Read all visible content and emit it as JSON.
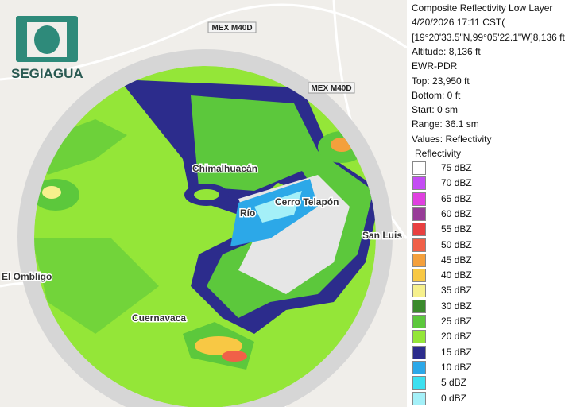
{
  "logo": "SEGIAGUA",
  "map_labels": {
    "road_1": "MEX M40D",
    "road_2": "MEX M40D",
    "city_1": "Chimalhuacán",
    "city_2": "Cerro Telapón",
    "city_3": "San Luis",
    "city_4": "Cuernavaca",
    "city_5": "El Ombligo",
    "city_6": "Río"
  },
  "info": [
    "Composite Reflectivity Low Layer",
    "4/20/2026 17:11 CST(",
    "[19°20'33.5\"N,99°05'22.1\"W]8,136 ft",
    "Altitude: 8,136 ft",
    "EWR-PDR",
    "Top: 23,950 ft",
    "Bottom: 0 ft",
    "Start: 0 sm",
    "Range: 36.1 sm",
    "Values: Reflectivity"
  ],
  "legend": {
    "title": "Reflectivity",
    "items": [
      {
        "label": "75 dBZ",
        "color": "#ffffff"
      },
      {
        "label": "70 dBZ",
        "color": "#c44cf4"
      },
      {
        "label": "65 dBZ",
        "color": "#e040e0"
      },
      {
        "label": "60 dBZ",
        "color": "#983c98"
      },
      {
        "label": "55 dBZ",
        "color": "#e84040"
      },
      {
        "label": "50 dBZ",
        "color": "#f06048"
      },
      {
        "label": "45 dBZ",
        "color": "#f4a03c"
      },
      {
        "label": "40 dBZ",
        "color": "#f8c844"
      },
      {
        "label": "35 dBZ",
        "color": "#f6f08c"
      },
      {
        "label": "30 dBZ",
        "color": "#3a8a2c"
      },
      {
        "label": "25 dBZ",
        "color": "#5cc83c"
      },
      {
        "label": "20 dBZ",
        "color": "#94e638"
      },
      {
        "label": "15 dBZ",
        "color": "#2c2c8c"
      },
      {
        "label": "10 dBZ",
        "color": "#2ca8e8"
      },
      {
        "label": "5 dBZ",
        "color": "#3ce0f0"
      },
      {
        "label": "0 dBZ",
        "color": "#a4f0f8"
      }
    ]
  }
}
